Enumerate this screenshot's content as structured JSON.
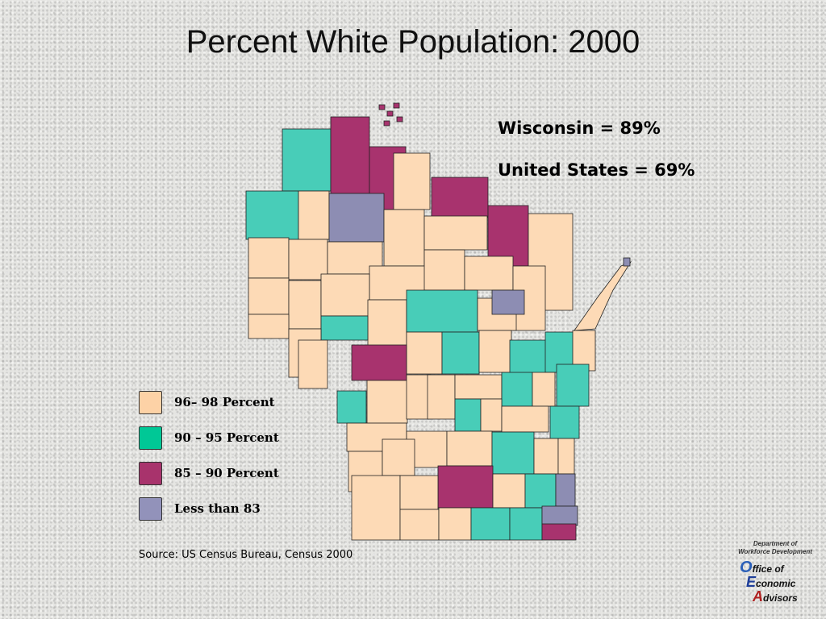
{
  "header": {
    "title": "Percent White Population: 2000"
  },
  "stats": [
    "Wisconsin = 89%",
    "United States = 69%"
  ],
  "legend": [
    {
      "label": "96– 98 Percent",
      "color": "#fdd2a6"
    },
    {
      "label": "90 – 95 Percent",
      "color": "#00c896"
    },
    {
      "label": "85 – 90 Percent",
      "color": "#a8336c"
    },
    {
      "label": "Less than 83",
      "color": "#9292ba"
    }
  ],
  "map_fills": [
    "#fddab6",
    "#48cdb8",
    "#a8336e",
    "#8d8db3"
  ],
  "source": "Source: US Census Bureau, Census 2000",
  "logo": {
    "department": [
      "Department of",
      "Workforce Development"
    ],
    "office": [
      {
        "initial": "O",
        "rest": "ffice of"
      },
      {
        "initial": "E",
        "rest": "conomic"
      },
      {
        "initial": "A",
        "rest": "dvisors"
      }
    ]
  }
}
